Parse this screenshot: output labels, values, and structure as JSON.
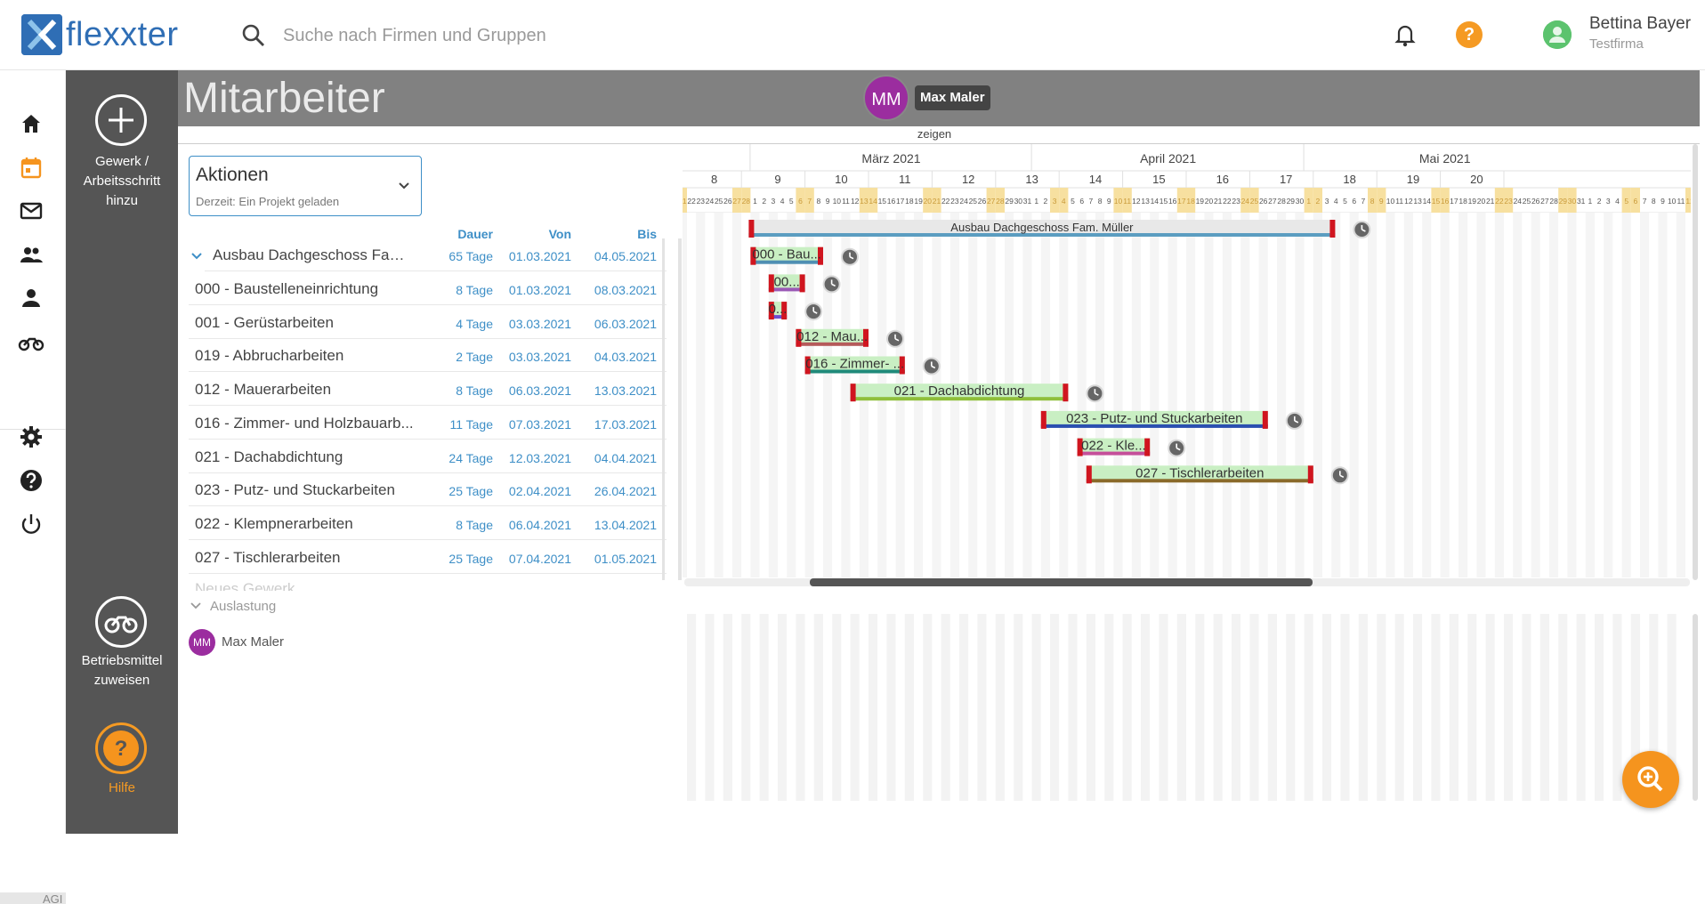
{
  "app": {
    "logo_text": "flexxter",
    "logo_mark": "X"
  },
  "search": {
    "placeholder": "Suche nach Firmen und Gruppen"
  },
  "user": {
    "name": "Bettina Bayer",
    "company": "Testfirma"
  },
  "help_top": {
    "glyph": "?"
  },
  "nav_footer": "AGI",
  "panel": {
    "add_label_1": "Gewerk /",
    "add_label_2": "Arbeitsschritt",
    "add_label_3": "hinzu",
    "equip_label_1": "Betriebsmittel",
    "equip_label_2": "zuweisen",
    "help_label": "Hilfe",
    "help_glyph": "?"
  },
  "header": {
    "title": "Mitarbeiter",
    "avatar_initials": "MM",
    "avatar_name": "Max Maler",
    "toggle_label": "zeigen"
  },
  "actions": {
    "label": "Aktionen",
    "sub": "Derzeit: Ein Projekt geladen"
  },
  "table": {
    "col_duration": "Dauer",
    "col_from": "Von",
    "col_to": "Bis",
    "group": {
      "name": "Ausbau Dachgeschoss Fam....",
      "duration": "65 Tage",
      "from": "01.03.2021",
      "to": "04.05.2021"
    },
    "rows": [
      {
        "name": "000 - Baustelleneinrichtung",
        "duration": "8 Tage",
        "from": "01.03.2021",
        "to": "08.03.2021"
      },
      {
        "name": "001 - Gerüstarbeiten",
        "duration": "4 Tage",
        "from": "03.03.2021",
        "to": "06.03.2021"
      },
      {
        "name": "019 - Abbrucharbeiten",
        "duration": "2 Tage",
        "from": "03.03.2021",
        "to": "04.03.2021"
      },
      {
        "name": "012 - Mauerarbeiten",
        "duration": "8 Tage",
        "from": "06.03.2021",
        "to": "13.03.2021"
      },
      {
        "name": "016 - Zimmer- und Holzbauarb...",
        "duration": "11 Tage",
        "from": "07.03.2021",
        "to": "17.03.2021"
      },
      {
        "name": "021 - Dachabdichtung",
        "duration": "24 Tage",
        "from": "12.03.2021",
        "to": "04.04.2021"
      },
      {
        "name": "023 - Putz- und Stuckarbeiten",
        "duration": "25 Tage",
        "from": "02.04.2021",
        "to": "26.04.2021"
      },
      {
        "name": "022 - Klempnerarbeiten",
        "duration": "8 Tage",
        "from": "06.04.2021",
        "to": "13.04.2021"
      },
      {
        "name": "027 - Tischlerarbeiten",
        "duration": "25 Tage",
        "from": "07.04.2021",
        "to": "01.05.2021"
      }
    ],
    "partial_row": "Neues Gewerk"
  },
  "utilization": {
    "label": "Auslastung",
    "avatar_initials": "MM",
    "name": "Max Maler"
  },
  "gantt": {
    "months": [
      {
        "label": "März 2021"
      },
      {
        "label": "April 2021"
      },
      {
        "label": "Mai 2021"
      }
    ],
    "weeks": [
      "8",
      "9",
      "10",
      "11",
      "12",
      "13",
      "14",
      "15",
      "16",
      "17",
      "18",
      "19",
      "20"
    ],
    "group_bar_label": "Ausbau Dachgeschoss Fam. Müller",
    "bars": [
      {
        "label": "000 - Bau...",
        "color": "#4f8fb3",
        "start": "01.03.2021",
        "end": "08.03.2021"
      },
      {
        "label": "00...",
        "color": "#9b59b6",
        "start": "03.03.2021",
        "end": "06.03.2021"
      },
      {
        "label": "0...",
        "color": "#6c4fd1",
        "start": "03.03.2021",
        "end": "04.03.2021"
      },
      {
        "label": "012 - Mau...",
        "color": "#b55a5a",
        "start": "06.03.2021",
        "end": "13.03.2021"
      },
      {
        "label": "016 - Zimmer- ...",
        "color": "#1f8a7a",
        "start": "07.03.2021",
        "end": "17.03.2021"
      },
      {
        "label": "021 - Dachabdichtung",
        "color": "#8fbf3a",
        "start": "12.03.2021",
        "end": "04.04.2021"
      },
      {
        "label": "023 - Putz- und Stuckarbeiten",
        "color": "#2a4fb0",
        "start": "02.04.2021",
        "end": "26.04.2021"
      },
      {
        "label": "022 - Kle...",
        "color": "#c54f9a",
        "start": "06.04.2021",
        "end": "13.04.2021"
      },
      {
        "label": "027 - Tischlerarbeiten",
        "color": "#8a6a2a",
        "start": "07.04.2021",
        "end": "01.05.2021"
      }
    ],
    "colors": {
      "bar_fill": "#c9efc3",
      "bar_cap": "#d0151f",
      "weekend": "#f7e0a0",
      "group_line": "#5b9dc0"
    }
  },
  "colors": {
    "accent": "#3e8fc7",
    "panel": "#555555",
    "orange": "#f5941e"
  }
}
